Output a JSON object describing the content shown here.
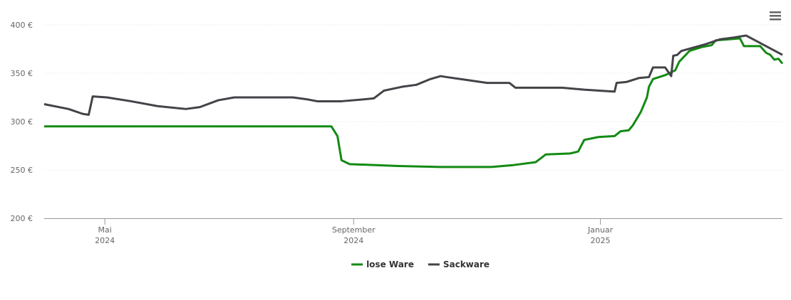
{
  "chart_data": {
    "type": "line",
    "xlim": [
      0,
      365
    ],
    "xticks": [
      {
        "value": 30,
        "label": "Mai 2024"
      },
      {
        "value": 153,
        "label": "September 2024"
      },
      {
        "value": 275,
        "label": "Januar 2025"
      }
    ],
    "ylim": [
      200,
      400
    ],
    "yticks": [
      {
        "value": 200,
        "label": "200 €"
      },
      {
        "value": 250,
        "label": "250 €"
      },
      {
        "value": 300,
        "label": "300 €"
      },
      {
        "value": 350,
        "label": "350 €"
      },
      {
        "value": 400,
        "label": "400 €"
      }
    ],
    "grid": true,
    "legend": "bottom",
    "series": [
      {
        "name": "lose Ware",
        "color": "#138a13",
        "x": [
          0,
          142,
          145,
          147,
          151,
          175,
          196,
          221,
          232,
          243,
          248,
          260,
          264,
          267,
          274,
          282,
          285,
          289,
          291,
          295,
          298,
          299,
          301,
          307,
          312,
          314,
          319,
          325,
          330,
          332,
          344,
          346,
          354,
          357,
          359,
          361,
          363,
          365
        ],
        "values": [
          295,
          295,
          285,
          260,
          256,
          254,
          253,
          253,
          255,
          258,
          266,
          267,
          269,
          281,
          284,
          285,
          290,
          291,
          296,
          310,
          325,
          336,
          344,
          348,
          353,
          362,
          373,
          377,
          379,
          384,
          386,
          378,
          378,
          371,
          369,
          364,
          365,
          360
        ]
      },
      {
        "name": "Sackware",
        "color": "#434348",
        "x": [
          0,
          12,
          19,
          22,
          24,
          31,
          43,
          56,
          70,
          77,
          86,
          94,
          123,
          130,
          135,
          147,
          158,
          163,
          168,
          177,
          184,
          191,
          196,
          199,
          209,
          219,
          230,
          233,
          256,
          267,
          282,
          283,
          288,
          294,
          299,
          301,
          307,
          310,
          311,
          313,
          315,
          327,
          334,
          341,
          347,
          365
        ],
        "values": [
          318,
          313,
          308,
          307,
          326,
          325,
          321,
          316,
          313,
          315,
          322,
          325,
          325,
          323,
          321,
          321,
          323,
          324,
          332,
          336,
          338,
          344,
          347,
          346,
          343,
          340,
          340,
          335,
          335,
          333,
          331,
          340,
          341,
          345,
          346,
          356,
          356,
          347,
          368,
          369,
          373,
          380,
          385,
          387,
          389,
          369
        ]
      }
    ]
  }
}
